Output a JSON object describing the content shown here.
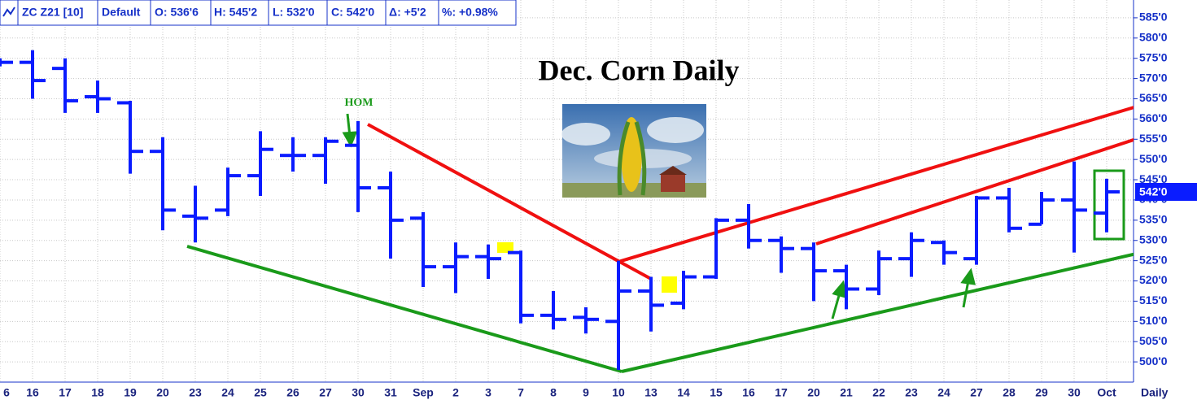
{
  "header": {
    "symbol": "ZC Z21 [10]",
    "template": "Default",
    "open": "O: 536'6",
    "high": "H: 545'2",
    "low": "L: 532'0",
    "close": "C: 542'0",
    "change": "Δ: +5'2",
    "percent": "%: +0.98%"
  },
  "chart_data": {
    "type": "ohlc",
    "title": "Dec. Corn Daily",
    "annotation": "HOM",
    "period_label": "Daily",
    "last_price": {
      "value": 542,
      "label": "542'0"
    },
    "color": "#0a1cff",
    "grid": true,
    "categories": [
      "6",
      "16",
      "17",
      "18",
      "19",
      "20",
      "23",
      "24",
      "25",
      "26",
      "27",
      "30",
      "31",
      "Sep",
      "2",
      "3",
      "7",
      "8",
      "9",
      "10",
      "13",
      "14",
      "15",
      "16",
      "17",
      "20",
      "21",
      "22",
      "23",
      "24",
      "27",
      "28",
      "29",
      "30",
      "Oct"
    ],
    "open": [
      574,
      574,
      572.5,
      565.5,
      564,
      552,
      536,
      537.5,
      546,
      551,
      551,
      553.5,
      543,
      535.5,
      523.5,
      526,
      527,
      511.5,
      511,
      510,
      517.5,
      514.5,
      521,
      535,
      530,
      528,
      522.5,
      518,
      525.5,
      529.5,
      525.5,
      540.5,
      534,
      540,
      536.75
    ],
    "high": [
      575,
      577,
      575,
      569.5,
      564.5,
      555.5,
      543.5,
      548,
      557,
      555.5,
      555.5,
      559.5,
      547,
      537,
      529.5,
      529,
      527.5,
      517.5,
      513.5,
      525,
      521,
      522.5,
      535.5,
      539,
      531,
      529.5,
      524,
      527.5,
      532,
      530,
      541,
      543,
      542,
      549.5,
      545.25
    ],
    "low": [
      573,
      565,
      561.5,
      561.5,
      546.5,
      532.5,
      529.5,
      536,
      541,
      547,
      544,
      537,
      525.5,
      518.5,
      517,
      520.5,
      509.5,
      508,
      507,
      498,
      507.5,
      513,
      520.5,
      528,
      522,
      515,
      513,
      516.5,
      521,
      524,
      524,
      532,
      534,
      527,
      532
    ],
    "close": [
      574,
      569.5,
      564.5,
      565,
      552,
      537.5,
      535.5,
      546,
      552.5,
      551,
      554.5,
      543,
      535,
      523.5,
      526,
      525.5,
      511.5,
      510.5,
      510.5,
      517.5,
      514,
      521,
      535,
      530,
      528,
      522.5,
      518,
      525.5,
      530,
      527,
      540.5,
      533,
      540,
      537.5,
      542
    ],
    "ylim": [
      495,
      589.4
    ],
    "yticks": [
      {
        "value": 500,
        "label": "500'0"
      },
      {
        "value": 505,
        "label": "505'0"
      },
      {
        "value": 510,
        "label": "510'0"
      },
      {
        "value": 515,
        "label": "515'0"
      },
      {
        "value": 520,
        "label": "520'0"
      },
      {
        "value": 525,
        "label": "525'0"
      },
      {
        "value": 530,
        "label": "530'0"
      },
      {
        "value": 535,
        "label": "535'0"
      },
      {
        "value": 540,
        "label": "540'0"
      },
      {
        "value": 545,
        "label": "545'0"
      },
      {
        "value": 550,
        "label": "550'0"
      },
      {
        "value": 555,
        "label": "555'0"
      },
      {
        "value": 560,
        "label": "560'0"
      },
      {
        "value": 565,
        "label": "565'0"
      },
      {
        "value": 570,
        "label": "570'0"
      },
      {
        "value": 575,
        "label": "575'0"
      },
      {
        "value": 580,
        "label": "580'0"
      },
      {
        "value": 585,
        "label": "585'0"
      }
    ]
  }
}
